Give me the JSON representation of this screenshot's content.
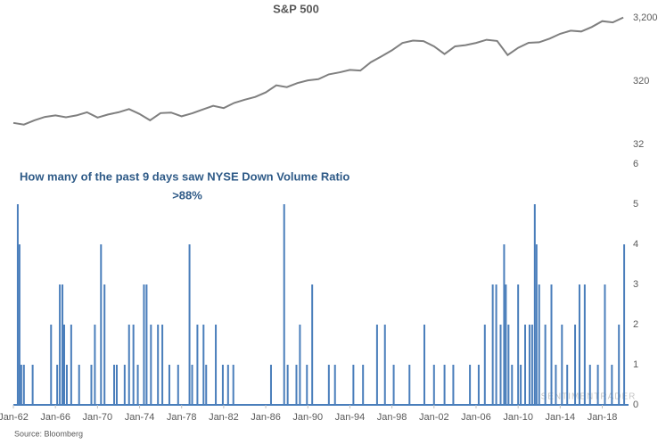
{
  "chart_data": [
    {
      "type": "line",
      "title": "S&P 500",
      "log_scale": true,
      "color": "#7f7f7f",
      "x": [
        "1962-01",
        "1963-01",
        "1964-01",
        "1965-01",
        "1966-01",
        "1967-01",
        "1968-01",
        "1969-01",
        "1970-01",
        "1971-01",
        "1972-01",
        "1973-01",
        "1974-01",
        "1975-01",
        "1976-01",
        "1977-01",
        "1978-01",
        "1979-01",
        "1980-01",
        "1981-01",
        "1982-01",
        "1983-01",
        "1984-01",
        "1985-01",
        "1986-01",
        "1987-01",
        "1988-01",
        "1989-01",
        "1990-01",
        "1991-01",
        "1992-01",
        "1993-01",
        "1994-01",
        "1995-01",
        "1996-01",
        "1997-01",
        "1998-01",
        "1999-01",
        "2000-01",
        "2001-01",
        "2002-01",
        "2003-01",
        "2004-01",
        "2005-01",
        "2006-01",
        "2007-01",
        "2008-01",
        "2009-01",
        "2010-01",
        "2011-01",
        "2012-01",
        "2013-01",
        "2014-01",
        "2015-01",
        "2016-01",
        "2017-01",
        "2018-01",
        "2019-01",
        "2020-01"
      ],
      "values": [
        70,
        66,
        77,
        87,
        92,
        86,
        92,
        103,
        85,
        95,
        103,
        116,
        97,
        77,
        100,
        102,
        89,
        99,
        114,
        130,
        120,
        145,
        163,
        180,
        212,
        274,
        257,
        297,
        329,
        343,
        408,
        438,
        481,
        470,
        636,
        786,
        980,
        1279,
        1394,
        1366,
        1130,
        855,
        1131,
        1181,
        1280,
        1438,
        1378,
        825,
        1073,
        1286,
        1312,
        1498,
        1782,
        1995,
        1940,
        2279,
        2823,
        2704,
        3230
      ],
      "xlim": [
        "1962-01",
        "2020-07"
      ],
      "ylim": [
        21,
        4700
      ],
      "yticks": [
        {
          "value": 3200,
          "label": "3,200"
        },
        320,
        32
      ]
    },
    {
      "type": "bar",
      "title": [
        "How many of the past 9 days saw NYSE Down Volume Ratio",
        ">88%"
      ],
      "color": "#4a7ebb",
      "x": [
        "1962-06",
        "1962-08",
        "1962-10",
        "1963-01",
        "1963-11",
        "1965-08",
        "1966-03",
        "1966-06",
        "1966-09",
        "1966-11",
        "1967-02",
        "1967-07",
        "1968-04",
        "1969-06",
        "1969-10",
        "1970-05",
        "1970-09",
        "1971-08",
        "1971-11",
        "1972-08",
        "1973-01",
        "1973-06",
        "1973-11",
        "1974-06",
        "1974-09",
        "1975-02",
        "1975-10",
        "1976-03",
        "1976-11",
        "1977-09",
        "1978-10",
        "1979-01",
        "1979-07",
        "1980-02",
        "1980-05",
        "1981-04",
        "1981-12",
        "1982-06",
        "1982-12",
        "1986-07",
        "1987-10",
        "1988-02",
        "1988-12",
        "1989-04",
        "1989-12",
        "1990-06",
        "1992-01",
        "1992-08",
        "1994-05",
        "1995-04",
        "1996-08",
        "1997-05",
        "1998-03",
        "1999-09",
        "2001-02",
        "2002-01",
        "2003-01",
        "2003-11",
        "2005-06",
        "2006-04",
        "2006-11",
        "2007-08",
        "2007-12",
        "2008-05",
        "2008-09",
        "2008-11",
        "2009-02",
        "2009-06",
        "2010-01",
        "2010-04",
        "2010-09",
        "2011-02",
        "2011-05",
        "2011-08",
        "2011-10",
        "2012-01",
        "2012-08",
        "2013-03",
        "2013-08",
        "2014-03",
        "2014-09",
        "2015-06",
        "2015-11",
        "2016-05",
        "2016-11",
        "2017-08",
        "2018-04",
        "2018-12",
        "2019-08",
        "2020-02"
      ],
      "values": [
        5,
        4,
        1,
        1,
        1,
        2,
        1,
        3,
        3,
        2,
        1,
        2,
        1,
        1,
        2,
        4,
        3,
        1,
        1,
        1,
        2,
        2,
        1,
        3,
        3,
        2,
        2,
        2,
        1,
        1,
        4,
        1,
        2,
        2,
        1,
        2,
        1,
        1,
        1,
        1,
        5,
        1,
        1,
        2,
        1,
        3,
        1,
        1,
        1,
        1,
        2,
        2,
        1,
        1,
        2,
        1,
        1,
        1,
        1,
        1,
        2,
        3,
        3,
        2,
        4,
        3,
        2,
        1,
        3,
        1,
        2,
        2,
        2,
        5,
        4,
        3,
        2,
        3,
        1,
        2,
        1,
        2,
        3,
        3,
        1,
        1,
        3,
        1,
        2,
        4
      ],
      "xlim": [
        "1962-01",
        "2020-07"
      ],
      "ylim": [
        0,
        6
      ],
      "yticks": [
        0,
        1,
        2,
        3,
        4,
        5,
        6
      ],
      "xticks": [
        {
          "value": "1962-01",
          "label": "Jan-62"
        },
        {
          "value": "1966-01",
          "label": "Jan-66"
        },
        {
          "value": "1970-01",
          "label": "Jan-70"
        },
        {
          "value": "1974-01",
          "label": "Jan-74"
        },
        {
          "value": "1978-01",
          "label": "Jan-78"
        },
        {
          "value": "1982-01",
          "label": "Jan-82"
        },
        {
          "value": "1986-01",
          "label": "Jan-86"
        },
        {
          "value": "1990-01",
          "label": "Jan-90"
        },
        {
          "value": "1994-01",
          "label": "Jan-94"
        },
        {
          "value": "1998-01",
          "label": "Jan-98"
        },
        {
          "value": "2002-01",
          "label": "Jan-02"
        },
        {
          "value": "2006-01",
          "label": "Jan-06"
        },
        {
          "value": "2010-01",
          "label": "Jan-10"
        },
        {
          "value": "2014-01",
          "label": "Jan-14"
        },
        {
          "value": "2018-01",
          "label": "Jan-18"
        }
      ],
      "watermark": "SENTIMENTRADER",
      "source": "Source: Bloomberg"
    }
  ]
}
